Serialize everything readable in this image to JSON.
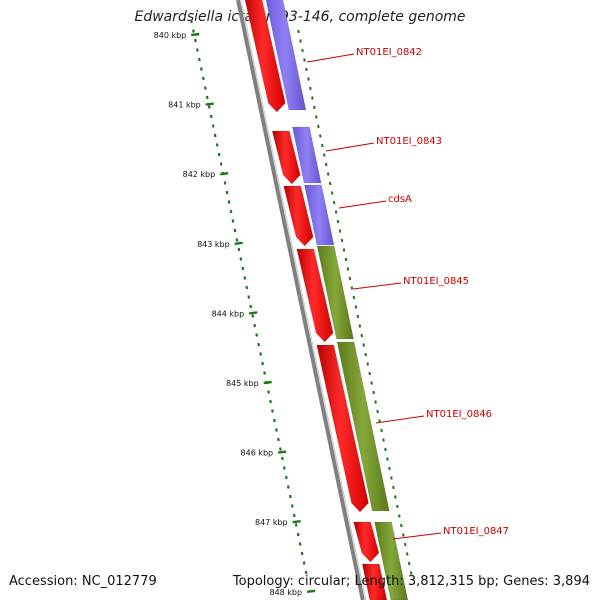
{
  "title": "Edwardsiella ictaluri 93-146, complete genome",
  "footer": {
    "accession": "Accession: NC_012779",
    "topology": "Topology: circular; Length: 3,812,315 bp; Genes: 3,894"
  },
  "scale_ticks": [
    "840 kbp",
    "841 kbp",
    "842 kbp",
    "843 kbp",
    "844 kbp",
    "845 kbp",
    "846 kbp",
    "847 kbp",
    "848 kbp"
  ],
  "gene_labels": [
    "NT01EI_0842",
    "NT01EI_0843",
    "cdsA",
    "NT01EI_0845",
    "NT01EI_0846",
    "NT01EI_0847"
  ],
  "colors": {
    "red_track": "#ff0000",
    "purple": "#7b68ee",
    "green": "#6b8e23",
    "label": "#cc0000",
    "dots": "#1a7a1a",
    "backbone": "#808080"
  }
}
